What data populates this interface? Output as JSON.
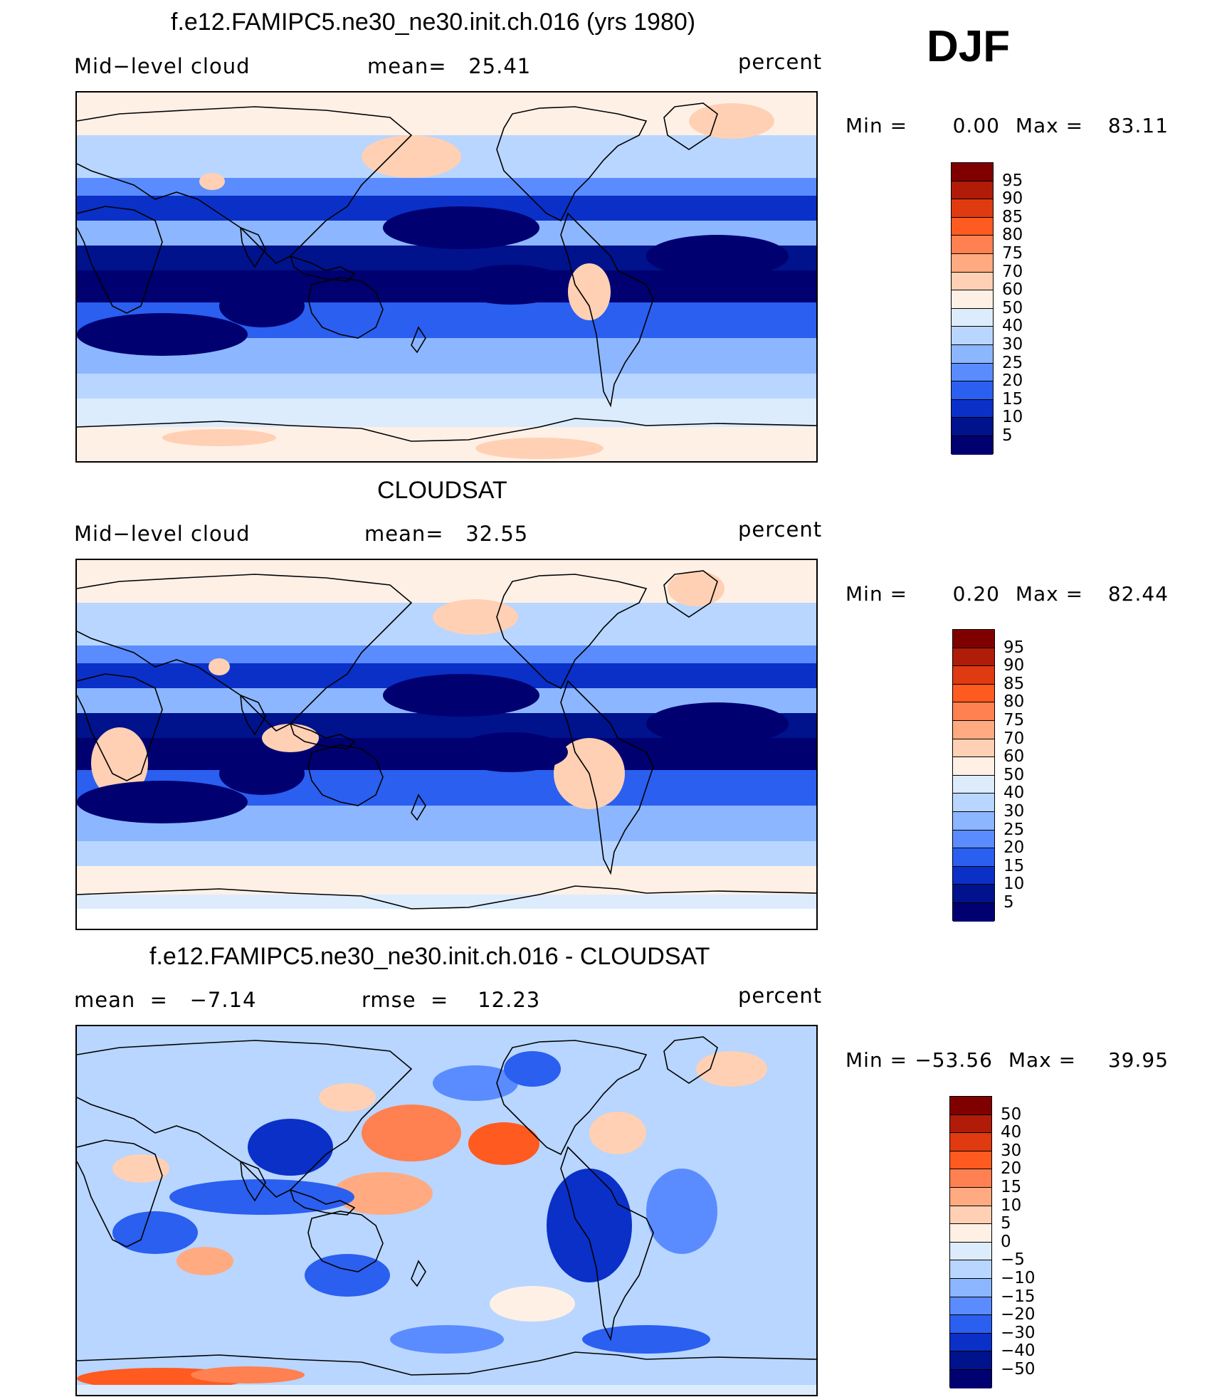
{
  "season": "DJF",
  "panels": [
    {
      "title": "f.e12.FAMIPC5.ne30_ne30.init.ch.016 (yrs 1980)",
      "left_label": "Mid−level cloud",
      "center_label": "mean=   25.41",
      "right_label": "percent",
      "min_label": "Min  =",
      "min_value": "0.00",
      "max_label": "Max  =",
      "max_value": "83.11",
      "levels": [
        "95",
        "90",
        "85",
        "80",
        "75",
        "70",
        "60",
        "50",
        "40",
        "30",
        "25",
        "20",
        "15",
        "10",
        "5"
      ]
    },
    {
      "title": "CLOUDSAT",
      "left_label": "Mid−level cloud",
      "center_label": "mean=   32.55",
      "right_label": "percent",
      "min_label": "Min  =",
      "min_value": "0.20",
      "max_label": "Max  =",
      "max_value": "82.44",
      "levels": [
        "95",
        "90",
        "85",
        "80",
        "75",
        "70",
        "60",
        "50",
        "40",
        "30",
        "25",
        "20",
        "15",
        "10",
        "5"
      ]
    },
    {
      "title": "f.e12.FAMIPC5.ne30_ne30.init.ch.016 - CLOUDSAT",
      "left_label": "mean  =   −7.14",
      "center_label": "rmse  =    12.23",
      "right_label": "percent",
      "min_label": "Min  =",
      "min_value": "−53.56",
      "max_label": "Max  =",
      "max_value": "39.95",
      "levels": [
        "50",
        "40",
        "30",
        "20",
        "15",
        "10",
        "5",
        "0",
        "−5",
        "−10",
        "−15",
        "−20",
        "−30",
        "−40",
        "−50"
      ]
    }
  ],
  "colors": {
    "scale": [
      "#800000",
      "#b01c08",
      "#e03a10",
      "#ff5a20",
      "#ff8050",
      "#ffaa80",
      "#ffd0b4",
      "#fff0e6",
      "#dcecfc",
      "#b8d6ff",
      "#8cb6ff",
      "#5a8cff",
      "#2a5ff0",
      "#0a30c8",
      "#00128c",
      "#000070"
    ]
  }
}
